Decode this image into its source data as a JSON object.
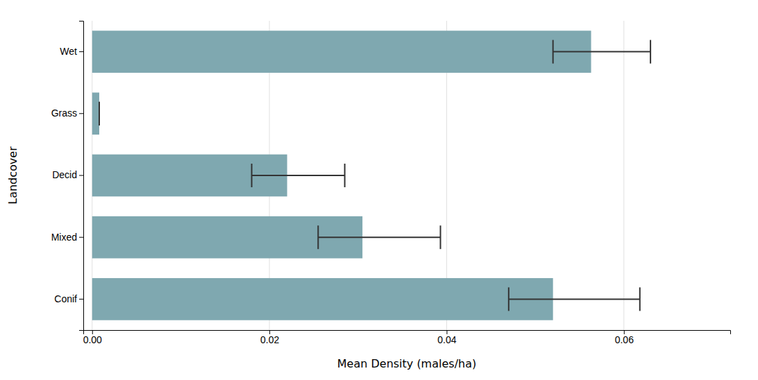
{
  "chart_data": {
    "type": "bar",
    "orientation": "horizontal",
    "categories": [
      "Conif",
      "Mixed",
      "Decid",
      "Grass",
      "Wet"
    ],
    "values": [
      0.052,
      0.0305,
      0.022,
      0.0008,
      0.0563
    ],
    "error_centers": [
      0.047,
      0.0255,
      0.018,
      0.0008,
      0.052
    ],
    "error_high": [
      0.0618,
      0.0393,
      0.0285,
      0.0008,
      0.063
    ],
    "color": "#7fa8b0",
    "xlabel": "Mean Density (males/ha)",
    "ylabel": "Landcover",
    "xlim": [
      -0.001,
      0.072
    ],
    "xticks": [
      {
        "value": 0,
        "label": "0.00"
      },
      0.02,
      0.04,
      0.06
    ],
    "grid": true
  }
}
